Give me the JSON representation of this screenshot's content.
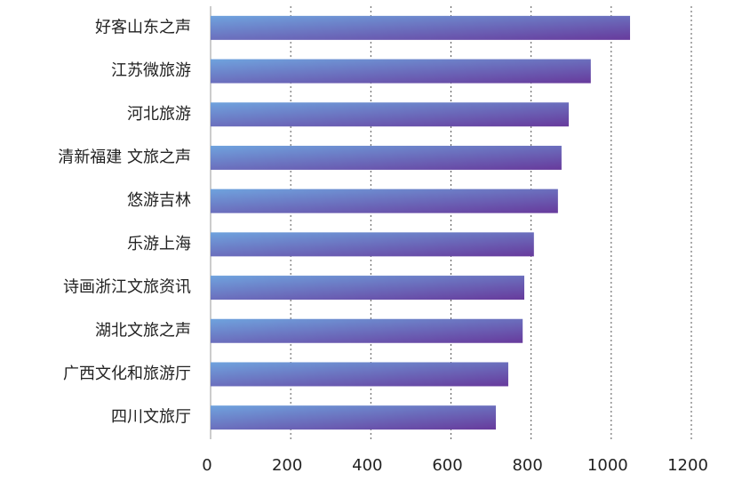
{
  "chart_data": {
    "type": "barh",
    "categories": [
      "好客山东之声",
      "江苏微旅游",
      "河北旅游",
      "清新福建 文旅之声",
      "悠游吉林",
      "乐游上海",
      "诗画浙江文旅资讯",
      "湖北文旅之声",
      "广西文化和旅游厅",
      "四川文旅厅"
    ],
    "values": [
      1047,
      949,
      894,
      876,
      867,
      807,
      783,
      779,
      743,
      712
    ],
    "gradient": [
      "#6fa3de",
      "#673a9c"
    ],
    "xlim": [
      0,
      1200
    ],
    "xticks": [
      0,
      200,
      400,
      600,
      800,
      1000,
      1200
    ],
    "grid": true
  }
}
